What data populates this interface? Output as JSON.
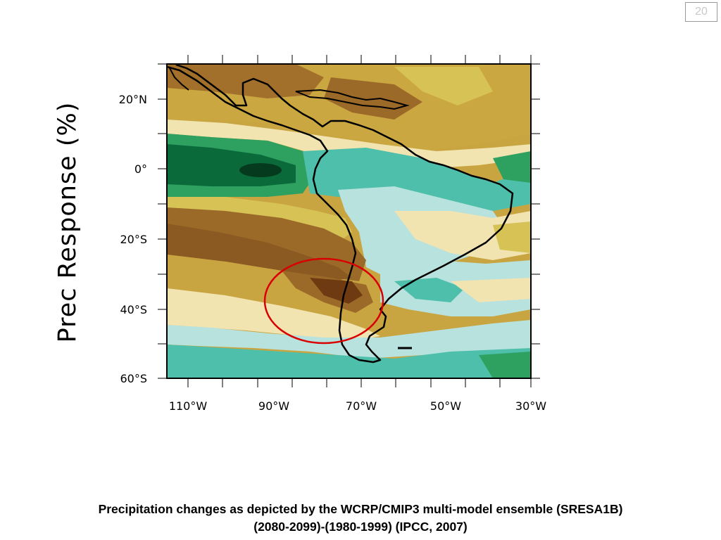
{
  "slide": {
    "page_number": "20"
  },
  "map": {
    "ylabel": "Prec Response (%)",
    "lat_labels": [
      "20°N",
      "0°",
      "20°S",
      "40°S",
      "60°S"
    ],
    "lon_labels": [
      "110°W",
      "90°W",
      "70°W",
      "50°W",
      "30°W"
    ],
    "highlight_color": "#d80000",
    "palette": {
      "dark_brown": "#6e3a12",
      "brown": "#9c6a28",
      "olive": "#c9a542",
      "yellow": "#d6c255",
      "pale_yellow": "#f1e4b0",
      "pale_cyan": "#b8e2de",
      "teal": "#4dbfaa",
      "green": "#2ea05f",
      "dark_green": "#0b6a3a"
    }
  },
  "caption": {
    "line1": "Precipitation changes as depicted by the WCRP/CMIP3 multi-model ensemble (SRESA1B)",
    "line2": "(2080-2099)-(1980-1999) (IPCC, 2007)"
  }
}
